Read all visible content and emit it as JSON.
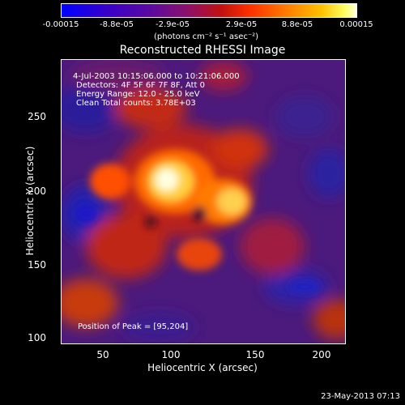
{
  "colorbar": {
    "ticks": [
      "-0.00015",
      "-8.8e-05",
      "-2.9e-05",
      "2.9e-05",
      "8.8e-05",
      "0.00015"
    ],
    "unit": "(photons cm⁻² s⁻¹ asec⁻²)"
  },
  "plot": {
    "title": "Reconstructed RHESSI Image",
    "annotations": {
      "time": "4-Jul-2003 10:15:06.000 to 10:21:06.000",
      "detectors": "Detectors: 4F 5F 6F 7F 8F, Att 0",
      "energy": "Energy Range: 12.0 - 25.0 keV",
      "clean": "Clean     Total counts: 3.78E+03",
      "peak": "Position of Peak = [95,204]"
    },
    "xlabel": "Heliocentric X (arcsec)",
    "ylabel": "Heliocentric Y (arcsec)",
    "xticks": [
      "50",
      "100",
      "150",
      "200"
    ],
    "yticks": [
      "250",
      "200",
      "150",
      "100"
    ]
  },
  "footer": {
    "date": "23-May-2013 07:13"
  }
}
